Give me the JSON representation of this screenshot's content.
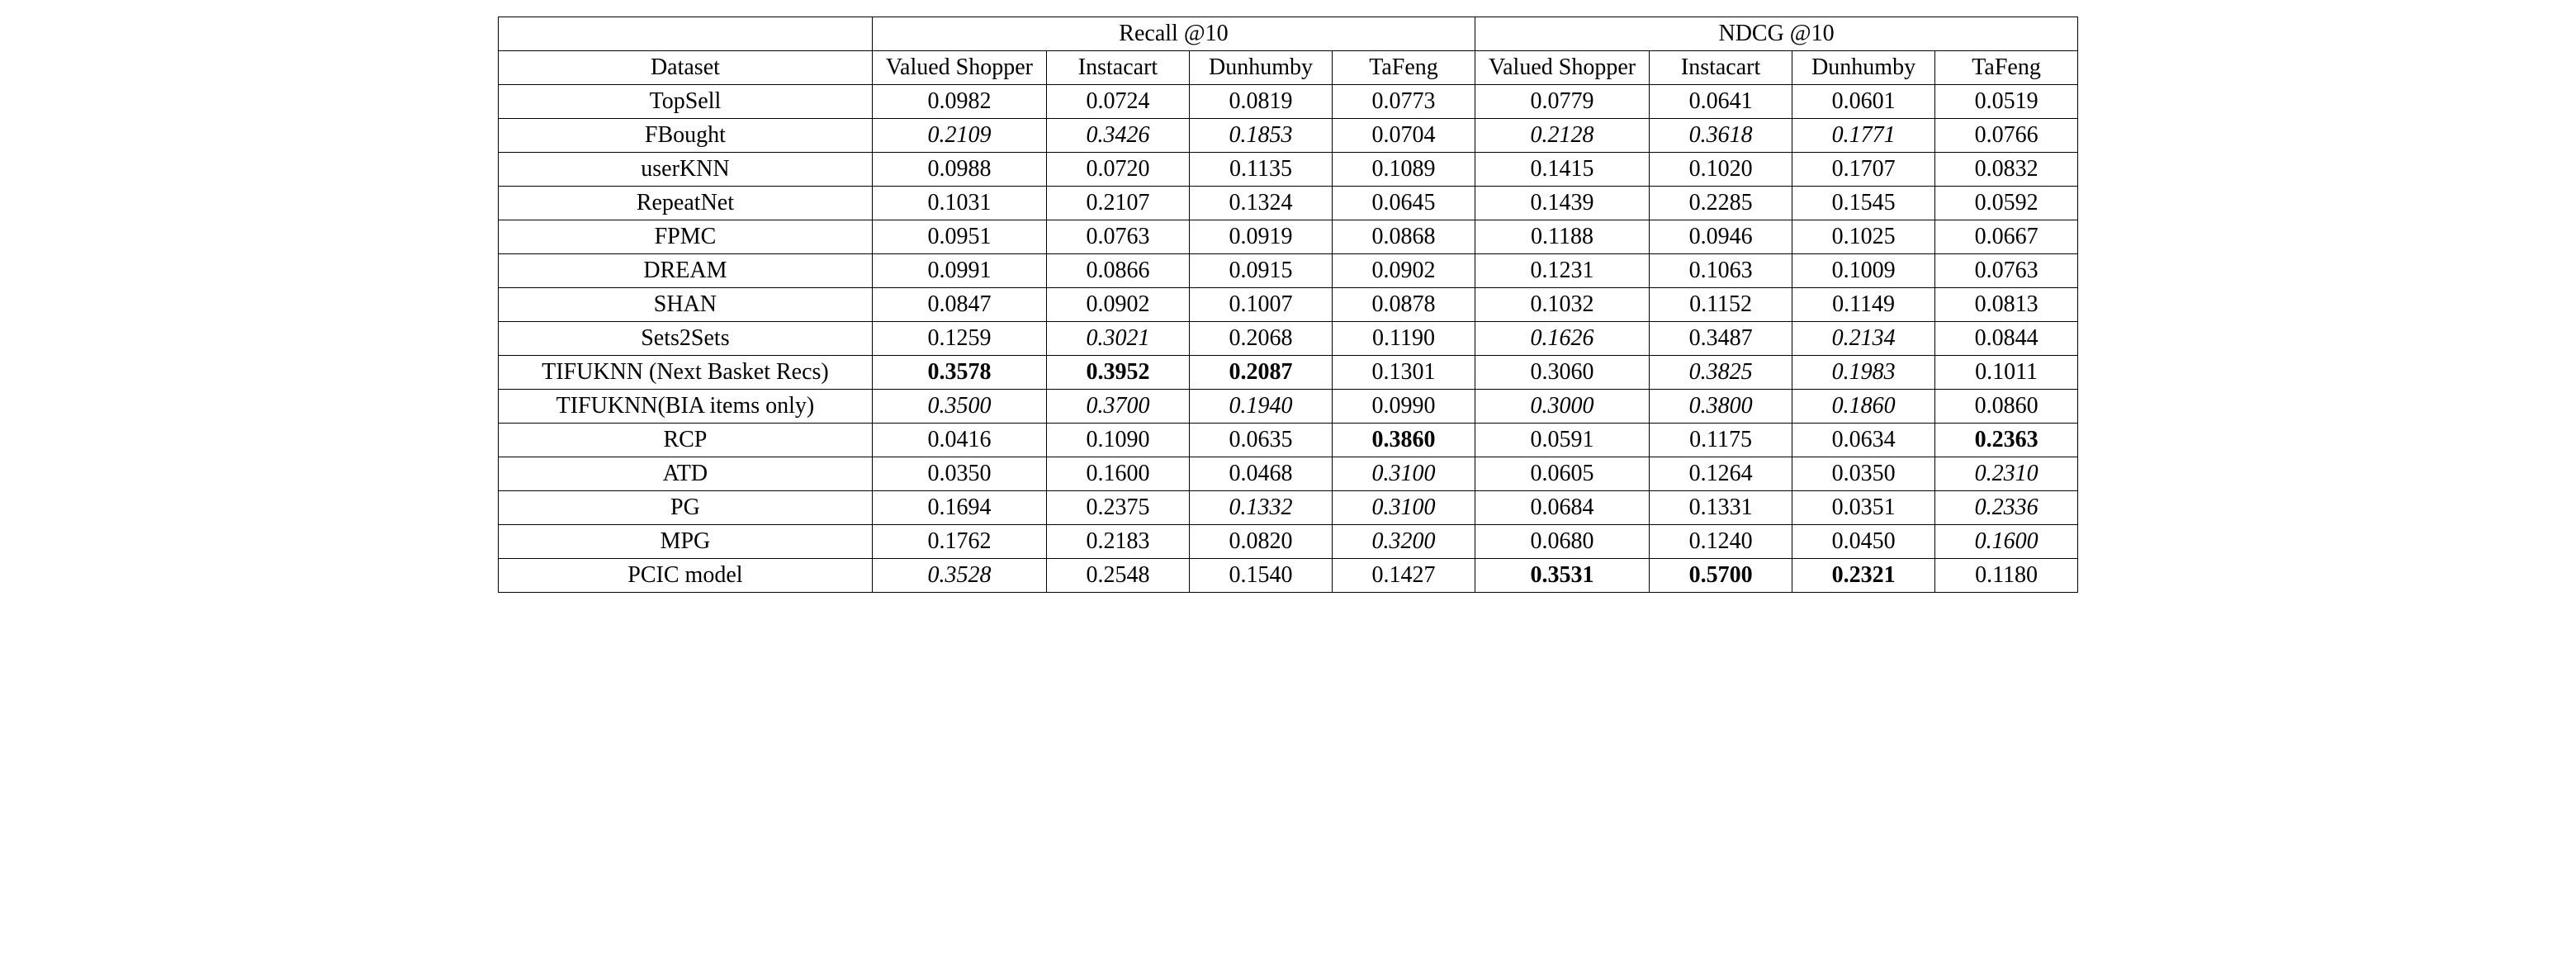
{
  "header": {
    "group1": "Recall @10",
    "group2": "NDCG @10",
    "dataset_label": "Dataset",
    "cols": [
      "Valued Shopper",
      "Instacart",
      "Dunhumby",
      "TaFeng",
      "Valued Shopper",
      "Instacart",
      "Dunhumby",
      "TaFeng"
    ]
  },
  "rows": [
    {
      "label": "TopSell",
      "cells": [
        {
          "v": "0.0982"
        },
        {
          "v": "0.0724"
        },
        {
          "v": "0.0819"
        },
        {
          "v": "0.0773"
        },
        {
          "v": "0.0779"
        },
        {
          "v": "0.0641"
        },
        {
          "v": "0.0601"
        },
        {
          "v": "0.0519"
        }
      ]
    },
    {
      "label": "FBought",
      "cells": [
        {
          "v": "0.2109",
          "s": "italic"
        },
        {
          "v": "0.3426",
          "s": "italic"
        },
        {
          "v": "0.1853",
          "s": "italic"
        },
        {
          "v": "0.0704"
        },
        {
          "v": "0.2128",
          "s": "italic"
        },
        {
          "v": "0.3618",
          "s": "italic"
        },
        {
          "v": "0.1771",
          "s": "italic"
        },
        {
          "v": "0.0766"
        }
      ]
    },
    {
      "label": "userKNN",
      "cells": [
        {
          "v": "0.0988"
        },
        {
          "v": "0.0720"
        },
        {
          "v": "0.1135"
        },
        {
          "v": "0.1089"
        },
        {
          "v": "0.1415"
        },
        {
          "v": "0.1020"
        },
        {
          "v": "0.1707"
        },
        {
          "v": "0.0832"
        }
      ]
    },
    {
      "label": "RepeatNet",
      "cells": [
        {
          "v": "0.1031"
        },
        {
          "v": "0.2107"
        },
        {
          "v": "0.1324"
        },
        {
          "v": "0.0645"
        },
        {
          "v": "0.1439"
        },
        {
          "v": "0.2285"
        },
        {
          "v": "0.1545"
        },
        {
          "v": "0.0592"
        }
      ]
    },
    {
      "label": "FPMC",
      "cells": [
        {
          "v": "0.0951"
        },
        {
          "v": "0.0763"
        },
        {
          "v": "0.0919"
        },
        {
          "v": "0.0868"
        },
        {
          "v": "0.1188"
        },
        {
          "v": "0.0946"
        },
        {
          "v": "0.1025"
        },
        {
          "v": "0.0667"
        }
      ]
    },
    {
      "label": "DREAM",
      "cells": [
        {
          "v": "0.0991"
        },
        {
          "v": "0.0866"
        },
        {
          "v": "0.0915"
        },
        {
          "v": "0.0902"
        },
        {
          "v": "0.1231"
        },
        {
          "v": "0.1063"
        },
        {
          "v": "0.1009"
        },
        {
          "v": "0.0763"
        }
      ]
    },
    {
      "label": "SHAN",
      "cells": [
        {
          "v": "0.0847"
        },
        {
          "v": "0.0902"
        },
        {
          "v": "0.1007"
        },
        {
          "v": "0.0878"
        },
        {
          "v": "0.1032"
        },
        {
          "v": "0.1152"
        },
        {
          "v": "0.1149"
        },
        {
          "v": "0.0813"
        }
      ]
    },
    {
      "label": "Sets2Sets",
      "cells": [
        {
          "v": "0.1259"
        },
        {
          "v": "0.3021",
          "s": "italic"
        },
        {
          "v": "0.2068"
        },
        {
          "v": "0.1190"
        },
        {
          "v": "0.1626",
          "s": "italic"
        },
        {
          "v": "0.3487"
        },
        {
          "v": "0.2134",
          "s": "italic"
        },
        {
          "v": "0.0844"
        }
      ]
    },
    {
      "label": "TIFUKNN (Next Basket Recs)",
      "cells": [
        {
          "v": "0.3578",
          "s": "bold"
        },
        {
          "v": "0.3952",
          "s": "bold"
        },
        {
          "v": "0.2087",
          "s": "bold"
        },
        {
          "v": "0.1301"
        },
        {
          "v": "0.3060"
        },
        {
          "v": "0.3825",
          "s": "italic"
        },
        {
          "v": "0.1983",
          "s": "italic"
        },
        {
          "v": "0.1011"
        }
      ]
    },
    {
      "label": "TIFUKNN(BIA items only)",
      "cells": [
        {
          "v": "0.3500",
          "s": "italic"
        },
        {
          "v": "0.3700",
          "s": "italic"
        },
        {
          "v": "0.1940",
          "s": "italic"
        },
        {
          "v": "0.0990"
        },
        {
          "v": "0.3000",
          "s": "italic"
        },
        {
          "v": "0.3800",
          "s": "italic"
        },
        {
          "v": "0.1860",
          "s": "italic"
        },
        {
          "v": "0.0860"
        }
      ]
    },
    {
      "label": "RCP",
      "cells": [
        {
          "v": "0.0416"
        },
        {
          "v": "0.1090"
        },
        {
          "v": "0.0635"
        },
        {
          "v": "0.3860",
          "s": "bold"
        },
        {
          "v": "0.0591"
        },
        {
          "v": "0.1175"
        },
        {
          "v": "0.0634"
        },
        {
          "v": "0.2363",
          "s": "bold"
        }
      ]
    },
    {
      "label": "ATD",
      "cells": [
        {
          "v": "0.0350"
        },
        {
          "v": "0.1600"
        },
        {
          "v": "0.0468"
        },
        {
          "v": "0.3100",
          "s": "italic"
        },
        {
          "v": "0.0605"
        },
        {
          "v": "0.1264"
        },
        {
          "v": "0.0350"
        },
        {
          "v": "0.2310",
          "s": "italic"
        }
      ]
    },
    {
      "label": "PG",
      "cells": [
        {
          "v": "0.1694"
        },
        {
          "v": "0.2375"
        },
        {
          "v": "0.1332",
          "s": "italic"
        },
        {
          "v": "0.3100",
          "s": "italic"
        },
        {
          "v": "0.0684"
        },
        {
          "v": "0.1331"
        },
        {
          "v": "0.0351"
        },
        {
          "v": "0.2336",
          "s": "italic"
        }
      ]
    },
    {
      "label": "MPG",
      "cells": [
        {
          "v": "0.1762"
        },
        {
          "v": "0.2183"
        },
        {
          "v": "0.0820"
        },
        {
          "v": "0.3200",
          "s": "italic"
        },
        {
          "v": "0.0680"
        },
        {
          "v": "0.1240"
        },
        {
          "v": "0.0450"
        },
        {
          "v": "0.1600",
          "s": "italic"
        }
      ]
    },
    {
      "label": "PCIC model",
      "cells": [
        {
          "v": "0.3528",
          "s": "italic"
        },
        {
          "v": "0.2548"
        },
        {
          "v": "0.1540"
        },
        {
          "v": "0.1427"
        },
        {
          "v": "0.3531",
          "s": "bold"
        },
        {
          "v": "0.5700",
          "s": "bold"
        },
        {
          "v": "0.2321",
          "s": "bold"
        },
        {
          "v": "0.1180"
        }
      ]
    }
  ]
}
